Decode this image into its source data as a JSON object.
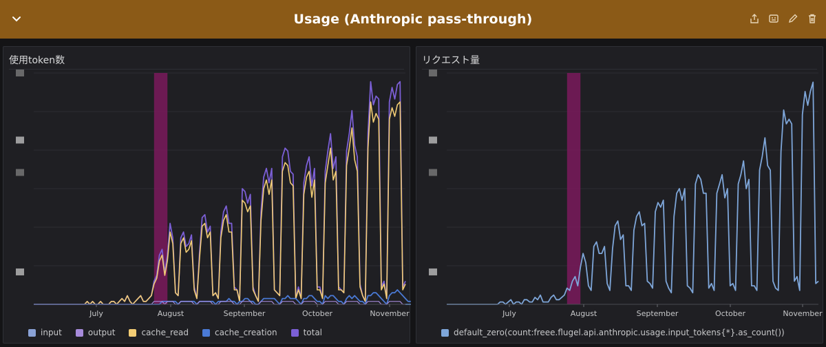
{
  "header": {
    "title": "Usage (Anthropic pass-through)",
    "collapse_icon": "chevron-down-icon",
    "tools": [
      "share-icon",
      "clone-icon",
      "edit-icon",
      "delete-icon"
    ],
    "background": "#8b5a17"
  },
  "panels": {
    "left": {
      "title": "使用token数"
    },
    "right": {
      "title": "リクエスト量"
    }
  },
  "colors": {
    "input": "#8ab8ff",
    "output": "#a78bdb",
    "cache_read": "#f2cc74",
    "cache_creation": "#4a7ad6",
    "total": "#7b5fd6",
    "requests": "#7ea6d9",
    "highlight": "#7a1a5c"
  },
  "chart_data": [
    {
      "type": "line",
      "title": "使用token数",
      "x_ticks": [
        "July",
        "August",
        "September",
        "October",
        "November"
      ],
      "x_range": [
        "mid-June",
        "mid-November"
      ],
      "y_tick_labels_obscured": true,
      "highlight_band": {
        "label": "late July",
        "start_day": 45,
        "end_day": 50
      },
      "legend": [
        "input",
        "output",
        "cache_read",
        "cache_creation",
        "total"
      ],
      "series": [
        {
          "name": "total",
          "values": [
            0,
            0,
            0,
            0,
            0,
            0,
            0,
            0,
            0,
            0,
            0,
            0,
            0,
            0,
            0,
            0,
            0,
            0,
            0,
            0,
            1,
            0,
            1,
            0,
            0,
            1,
            0,
            0,
            0,
            1,
            1,
            0,
            1,
            2,
            1,
            3,
            1,
            0,
            1,
            2,
            3,
            1,
            1,
            2,
            3,
            8,
            10,
            17,
            19,
            11,
            17,
            28,
            23,
            4,
            3,
            23,
            25,
            20,
            21,
            24,
            6,
            2,
            18,
            30,
            31,
            25,
            27,
            3,
            4,
            2,
            25,
            32,
            34,
            28,
            28,
            6,
            5,
            1,
            40,
            39,
            35,
            38,
            6,
            3,
            1,
            32,
            44,
            47,
            42,
            47,
            5,
            4,
            3,
            51,
            54,
            53,
            46,
            45,
            2,
            6,
            2,
            42,
            48,
            51,
            41,
            47,
            6,
            6,
            2,
            46,
            53,
            59,
            47,
            51,
            6,
            5,
            4,
            53,
            59,
            67,
            55,
            51,
            7,
            3,
            1,
            59,
            77,
            69,
            72,
            71,
            6,
            8,
            2,
            70,
            75,
            71,
            76,
            77,
            6,
            8
          ]
        },
        {
          "name": "cache_read",
          "values": [
            0,
            0,
            0,
            0,
            0,
            0,
            0,
            0,
            0,
            0,
            0,
            0,
            0,
            0,
            0,
            0,
            0,
            0,
            0,
            0,
            1,
            0,
            1,
            0,
            0,
            1,
            0,
            0,
            0,
            1,
            1,
            0,
            1,
            2,
            1,
            3,
            1,
            0,
            1,
            2,
            3,
            1,
            1,
            2,
            3,
            7,
            9,
            15,
            17,
            10,
            15,
            25,
            21,
            4,
            3,
            21,
            23,
            18,
            19,
            22,
            5,
            2,
            16,
            27,
            28,
            23,
            25,
            3,
            4,
            2,
            23,
            29,
            31,
            25,
            25,
            5,
            5,
            1,
            36,
            35,
            32,
            34,
            5,
            3,
            1,
            29,
            40,
            43,
            38,
            43,
            5,
            4,
            3,
            46,
            49,
            48,
            42,
            41,
            2,
            5,
            2,
            38,
            44,
            46,
            37,
            43,
            5,
            5,
            2,
            42,
            48,
            54,
            43,
            46,
            5,
            5,
            4,
            48,
            54,
            61,
            50,
            46,
            6,
            3,
            1,
            54,
            70,
            63,
            66,
            64,
            5,
            7,
            2,
            64,
            68,
            65,
            69,
            70,
            5,
            7
          ]
        },
        {
          "name": "cache_creation",
          "values": [
            0,
            0,
            0,
            0,
            0,
            0,
            0,
            0,
            0,
            0,
            0,
            0,
            0,
            0,
            0,
            0,
            0,
            0,
            0,
            0,
            0,
            0,
            0,
            0,
            0,
            0,
            0,
            0,
            0,
            0,
            0,
            0,
            0,
            0,
            0,
            0,
            0,
            0,
            0,
            0,
            0,
            0,
            0,
            0,
            0,
            0,
            0,
            0,
            1,
            1,
            1,
            1,
            1,
            1,
            0,
            1,
            1,
            1,
            1,
            1,
            1,
            0,
            1,
            1,
            1,
            1,
            1,
            1,
            0,
            1,
            1,
            1,
            1,
            2,
            1,
            1,
            0,
            1,
            1,
            2,
            2,
            1,
            1,
            0,
            0,
            1,
            2,
            2,
            2,
            2,
            2,
            1,
            0,
            2,
            2,
            3,
            2,
            2,
            2,
            1,
            0,
            2,
            2,
            3,
            3,
            2,
            1,
            1,
            0,
            3,
            2,
            3,
            3,
            2,
            1,
            1,
            0,
            2,
            3,
            2,
            3,
            2,
            1,
            1,
            0,
            3,
            3,
            4,
            4,
            3,
            2,
            1,
            0,
            3,
            4,
            4,
            5,
            4,
            3,
            2,
            1,
            1
          ]
        },
        {
          "name": "output",
          "values": [
            0,
            0,
            0,
            0,
            0,
            0,
            0,
            0,
            0,
            0,
            0,
            0,
            0,
            0,
            0,
            0,
            0,
            0,
            0,
            0,
            0,
            0,
            0,
            0,
            0,
            0,
            0,
            0,
            0,
            0,
            0,
            0,
            0,
            0,
            0,
            0,
            0,
            0,
            0,
            0,
            0,
            0,
            0,
            0,
            0,
            1,
            1,
            1,
            1,
            0,
            1,
            1,
            1,
            0,
            0,
            1,
            1,
            1,
            1,
            1,
            0,
            0,
            1,
            1,
            1,
            1,
            1,
            0,
            0,
            0,
            1,
            1,
            1,
            1,
            1,
            0,
            0,
            0,
            1,
            1,
            1,
            1,
            0,
            0,
            0,
            1,
            1,
            1,
            1,
            1,
            0,
            0,
            0,
            1,
            1,
            1,
            1,
            1,
            0,
            0,
            0,
            1,
            1,
            1,
            1,
            1,
            0,
            0,
            0,
            1,
            1,
            1,
            1,
            1,
            0,
            0,
            0,
            1,
            1,
            1,
            1,
            1,
            0,
            0,
            0,
            1,
            1,
            1,
            1,
            1,
            0,
            0,
            0,
            1,
            1,
            1,
            1,
            1,
            0,
            0
          ]
        },
        {
          "name": "input",
          "values": [
            0,
            0,
            0,
            0,
            0,
            0,
            0,
            0,
            0,
            0,
            0,
            0,
            0,
            0,
            0,
            0,
            0,
            0,
            0,
            0,
            0,
            0,
            0,
            0,
            0,
            0,
            0,
            0,
            0,
            0,
            0,
            0,
            0,
            0,
            0,
            0,
            0,
            0,
            0,
            0,
            0,
            0,
            0,
            0,
            0,
            0,
            0,
            0,
            0,
            0,
            0,
            0,
            0,
            0,
            0,
            0,
            0,
            0,
            0,
            0,
            0,
            0,
            0,
            0,
            0,
            0,
            0,
            0,
            0,
            0,
            0,
            0,
            0,
            0,
            0,
            0,
            0,
            0,
            0,
            0,
            0,
            0,
            0,
            0,
            0,
            0,
            0,
            0,
            0,
            0,
            0,
            0,
            0,
            0,
            0,
            0,
            0,
            0,
            0,
            0,
            0,
            0,
            0,
            0,
            0,
            0,
            0,
            0,
            0,
            0,
            0,
            0,
            0,
            0,
            0,
            0,
            0,
            0,
            0,
            0,
            0,
            0,
            0,
            0,
            0,
            0,
            0,
            0,
            0,
            0,
            0,
            0,
            0,
            0,
            0,
            0,
            0,
            0,
            0,
            0,
            0,
            0,
            0
          ]
        }
      ]
    },
    {
      "type": "line",
      "title": "リクエスト量",
      "x_ticks": [
        "July",
        "August",
        "September",
        "October",
        "November"
      ],
      "x_range": [
        "mid-June",
        "mid-November"
      ],
      "y_tick_labels_obscured": true,
      "highlight_band": {
        "label": "late July",
        "start_day": 45,
        "end_day": 50
      },
      "legend": [
        "default_zero(count:freee.flugel.api.anthropic.usage.input_tokens{*}.as_count())"
      ],
      "series": [
        {
          "name": "default_zero(count:freee.flugel.api.anthropic.usage.input_tokens{*}.as_count())",
          "values": [
            0,
            0,
            0,
            0,
            0,
            0,
            0,
            0,
            0,
            0,
            0,
            0,
            0,
            0,
            0,
            0,
            0,
            0,
            0,
            0,
            1,
            1,
            0,
            1,
            2,
            0,
            1,
            1,
            0,
            2,
            2,
            1,
            1,
            3,
            2,
            4,
            1,
            1,
            1,
            3,
            4,
            2,
            2,
            3,
            4,
            7,
            6,
            10,
            12,
            8,
            16,
            22,
            18,
            8,
            6,
            25,
            27,
            22,
            22,
            25,
            9,
            6,
            24,
            34,
            36,
            28,
            30,
            8,
            8,
            6,
            32,
            38,
            40,
            34,
            35,
            10,
            9,
            7,
            40,
            44,
            42,
            45,
            10,
            7,
            5,
            38,
            48,
            50,
            45,
            50,
            8,
            7,
            5,
            52,
            56,
            54,
            48,
            48,
            7,
            9,
            6,
            48,
            52,
            56,
            46,
            50,
            8,
            9,
            6,
            52,
            56,
            62,
            50,
            54,
            8,
            8,
            6,
            58,
            64,
            72,
            60,
            58,
            10,
            7,
            6,
            66,
            84,
            78,
            80,
            78,
            10,
            12,
            6,
            82,
            92,
            86,
            92,
            96,
            9,
            10
          ]
        }
      ]
    }
  ]
}
